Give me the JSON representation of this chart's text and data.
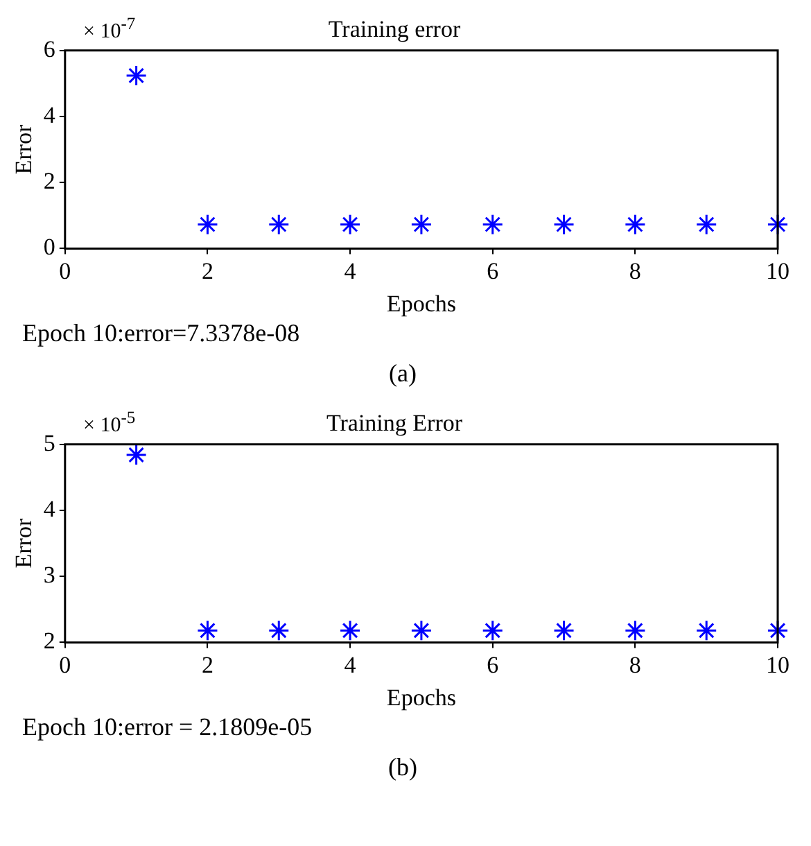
{
  "chart_data": [
    {
      "type": "scatter",
      "title": "Training error",
      "xlabel": "Epochs",
      "ylabel": "Error",
      "x": [
        1,
        2,
        3,
        4,
        5,
        6,
        7,
        8,
        9,
        10
      ],
      "series": [
        {
          "color": "#0000ff",
          "values": [
            5.24,
            0.73,
            0.73,
            0.73,
            0.73,
            0.73,
            0.73,
            0.73,
            0.73,
            0.73
          ]
        }
      ],
      "xlim": [
        0,
        10
      ],
      "xticks": [
        0,
        2,
        4,
        6,
        8,
        10
      ],
      "ylim": [
        0,
        6
      ],
      "yticks": [
        0,
        2,
        4,
        6
      ],
      "marker": "cross",
      "grid": false,
      "legend": false,
      "annotations": [
        "× 10$^{-7}$",
        "Epoch 10:error=7.3378e-08",
        "(a)"
      ]
    },
    {
      "type": "scatter",
      "title": "Training Error",
      "xlabel": "Epochs",
      "ylabel": "Error",
      "x": [
        1,
        2,
        3,
        4,
        5,
        6,
        7,
        8,
        9,
        10
      ],
      "series": [
        {
          "color": "#0000ff",
          "values": [
            4.84,
            2.18,
            2.18,
            2.18,
            2.18,
            2.18,
            2.18,
            2.18,
            2.18,
            2.18
          ]
        }
      ],
      "xlim": [
        0,
        10
      ],
      "xticks": [
        0,
        2,
        4,
        6,
        8,
        10
      ],
      "ylim": [
        2,
        5
      ],
      "yticks": [
        2,
        3,
        4,
        5
      ],
      "marker": "cross",
      "grid": false,
      "legend": false,
      "annotations": [
        "× 10$^{-5}$",
        "Epoch 10:error = 2.1809e-05",
        "(b)"
      ]
    }
  ]
}
